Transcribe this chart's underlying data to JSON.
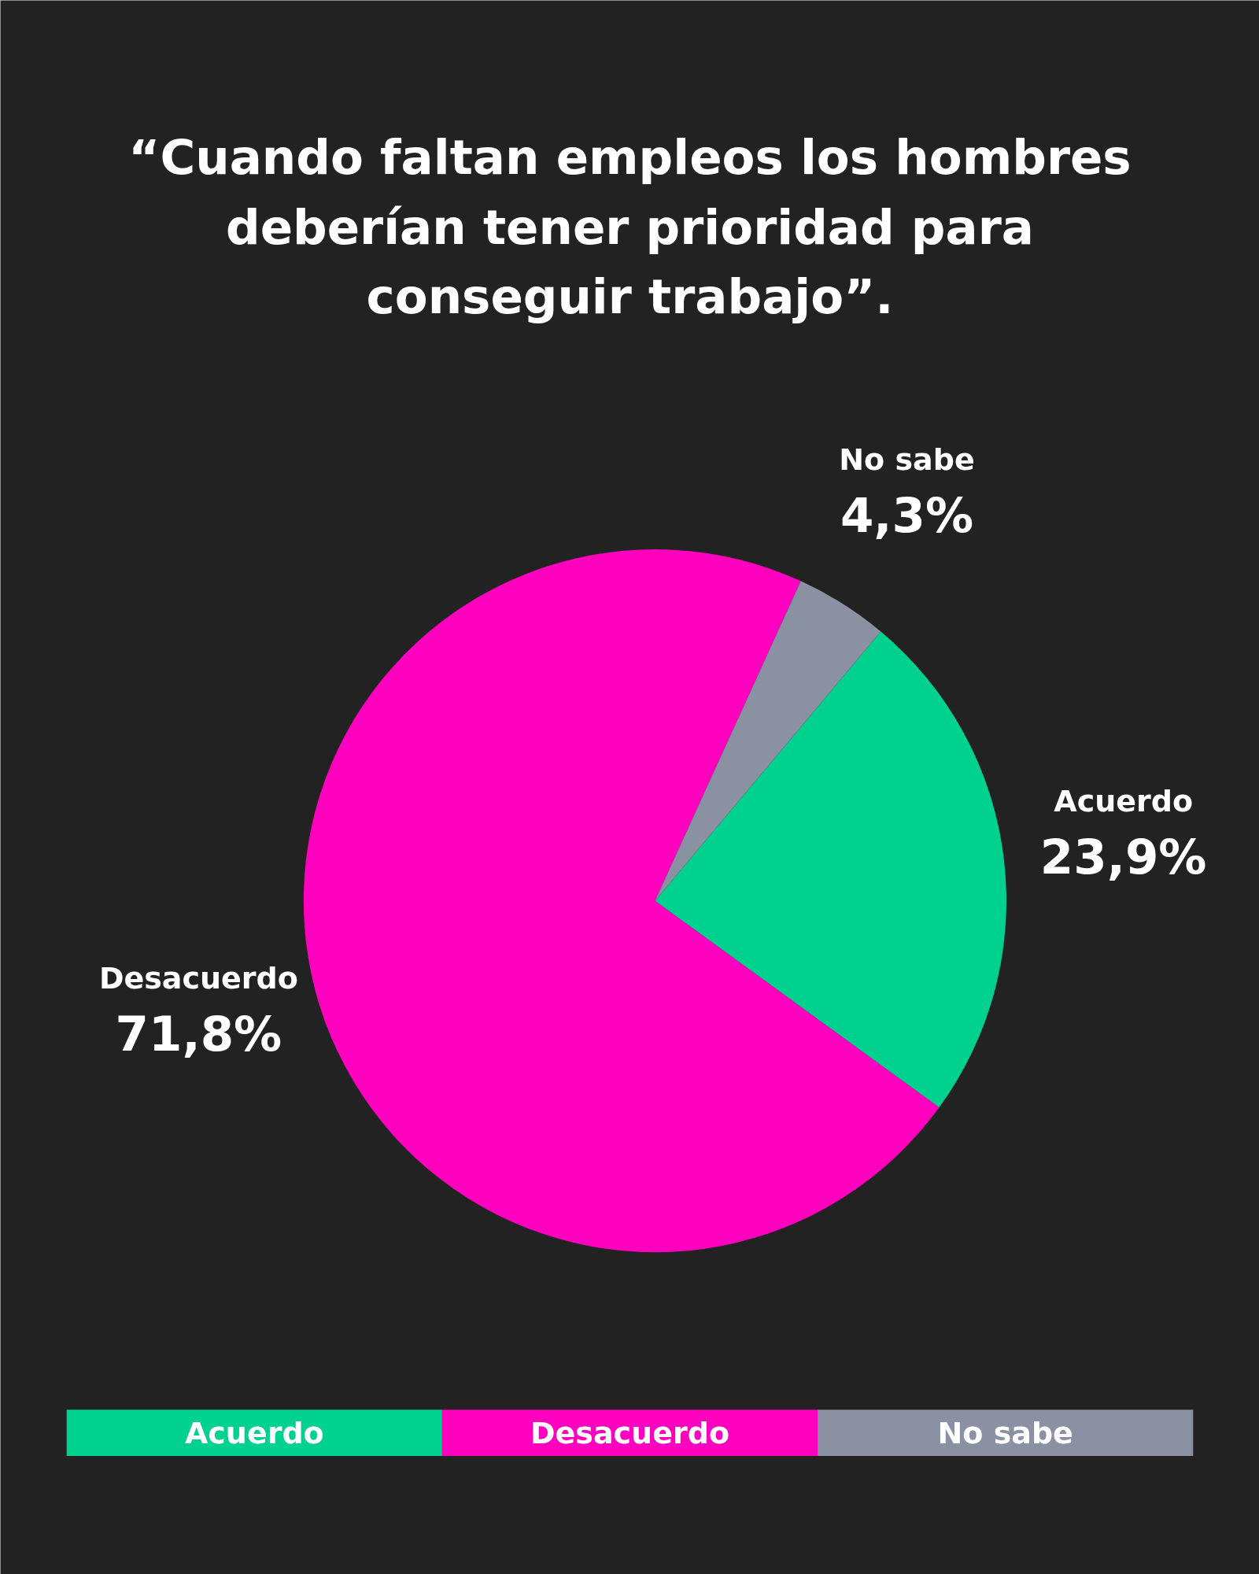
{
  "chart_data": {
    "type": "pie",
    "title": "“Cuando faltan empleos los hombres deberían tener prioridad para conseguir trabajo”.",
    "categories": [
      "Acuerdo",
      "Desacuerdo",
      "No sabe"
    ],
    "values": [
      23.9,
      71.8,
      4.3
    ],
    "value_labels": [
      "23,9%",
      "71,8%",
      "4,3%"
    ],
    "colors": [
      "#00d18f",
      "#ff00bf",
      "#8a91a3"
    ]
  }
}
